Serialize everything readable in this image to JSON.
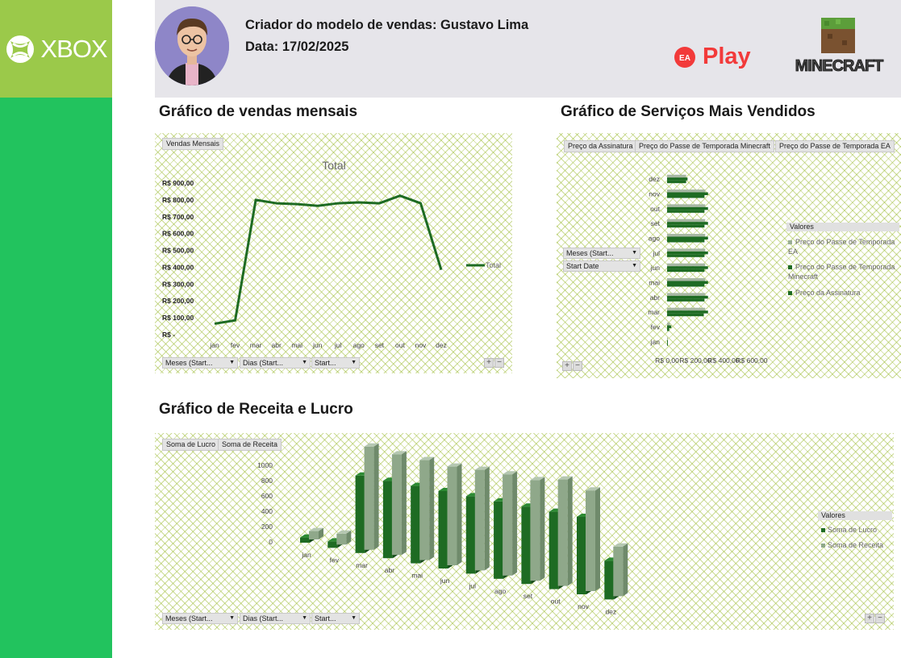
{
  "brand": {
    "xbox": "XBOX",
    "ea": "Play",
    "ea_badge": "EA",
    "minecraft": "MINECRAFT"
  },
  "header": {
    "creator": "Criador do modelo de vendas: Gustavo Lima",
    "date": "Data: 17/02/2025"
  },
  "sections": {
    "monthly": "Gráfico de vendas mensais",
    "services": "Gráfico de Serviços Mais Vendidos",
    "revenue": "Gráfico de Receita e Lucro"
  },
  "colors": {
    "dark_green": "#1e6b23",
    "light_green_bar": "#8fa88a",
    "sidebar": "#22c35e",
    "logo_bg": "#9bc94a"
  },
  "chart_data": [
    {
      "type": "line",
      "field_button": "Vendas Mensais",
      "title": "Total",
      "categories": [
        "jan",
        "fev",
        "mar",
        "abr",
        "mai",
        "jun",
        "jul",
        "ago",
        "set",
        "out",
        "nov",
        "dez"
      ],
      "series": [
        {
          "name": "Total",
          "values": [
            65,
            85,
            800,
            780,
            775,
            765,
            780,
            785,
            780,
            825,
            780,
            385
          ]
        }
      ],
      "ylim": [
        0,
        900
      ],
      "yticks": [
        "R$ -",
        "R$ 100,00",
        "R$ 200,00",
        "R$ 300,00",
        "R$ 400,00",
        "R$ 500,00",
        "R$ 600,00",
        "R$ 700,00",
        "R$ 800,00",
        "R$ 900,00"
      ],
      "legend": "Total",
      "filters": [
        "Meses (Start...",
        "Dias (Start...",
        "Start..."
      ]
    },
    {
      "type": "bar",
      "orientation": "horizontal",
      "field_buttons": [
        "Preço da Assinatura",
        "Preço do Passe de Temporada Minecraft",
        "Preço do Passe de Temporada EA"
      ],
      "categories": [
        "jan",
        "fev",
        "mar",
        "abr",
        "mai",
        "jun",
        "jul",
        "ago",
        "set",
        "out",
        "nov",
        "dez"
      ],
      "series": [
        {
          "name": "Preço do Passe de Temporada EA",
          "values": [
            5,
            20,
            270,
            270,
            270,
            270,
            270,
            270,
            270,
            270,
            270,
            135
          ]
        },
        {
          "name": "Preço do Passe de Temporada Minecraft",
          "values": [
            5,
            30,
            290,
            290,
            290,
            290,
            290,
            290,
            290,
            290,
            290,
            145
          ]
        },
        {
          "name": "Preço da Assinatura",
          "values": [
            5,
            15,
            260,
            265,
            265,
            265,
            265,
            265,
            265,
            265,
            265,
            135
          ]
        }
      ],
      "xticks": [
        "R$ 0,00",
        "R$ 200,00",
        "R$ 400,00",
        "R$ 600,00"
      ],
      "xlim": [
        0,
        600
      ],
      "legend_title": "Valores",
      "legend": [
        "Preço do Passe de Temporada EA",
        "Preço do Passe de Temporada Minecraft",
        "Preço da Assinatura"
      ],
      "filters": [
        "Meses (Start...",
        "Start Date"
      ]
    },
    {
      "type": "bar",
      "style": "3d-column",
      "field_buttons": [
        "Soma de Lucro",
        "Soma de Receita"
      ],
      "categories": [
        "jan",
        "fev",
        "mar",
        "abr",
        "mai",
        "jun",
        "jul",
        "ago",
        "set",
        "out",
        "nov",
        "dez"
      ],
      "series": [
        {
          "name": "Soma de Lucro",
          "values": [
            40,
            50,
            600,
            600,
            600,
            600,
            600,
            600,
            600,
            600,
            600,
            300
          ]
        },
        {
          "name": "Soma de Receita",
          "values": [
            65,
            85,
            800,
            780,
            775,
            765,
            780,
            785,
            780,
            825,
            780,
            385
          ]
        }
      ],
      "yticks": [
        "0",
        "200",
        "400",
        "600",
        "800",
        "1000"
      ],
      "ylim": [
        0,
        1000
      ],
      "legend_title": "Valores",
      "legend": [
        "Soma de Lucro",
        "Soma de Receita"
      ],
      "filters": [
        "Meses (Start...",
        "Dias (Start...",
        "Start..."
      ]
    }
  ],
  "zoom": {
    "plus": "+",
    "minus": "−"
  }
}
